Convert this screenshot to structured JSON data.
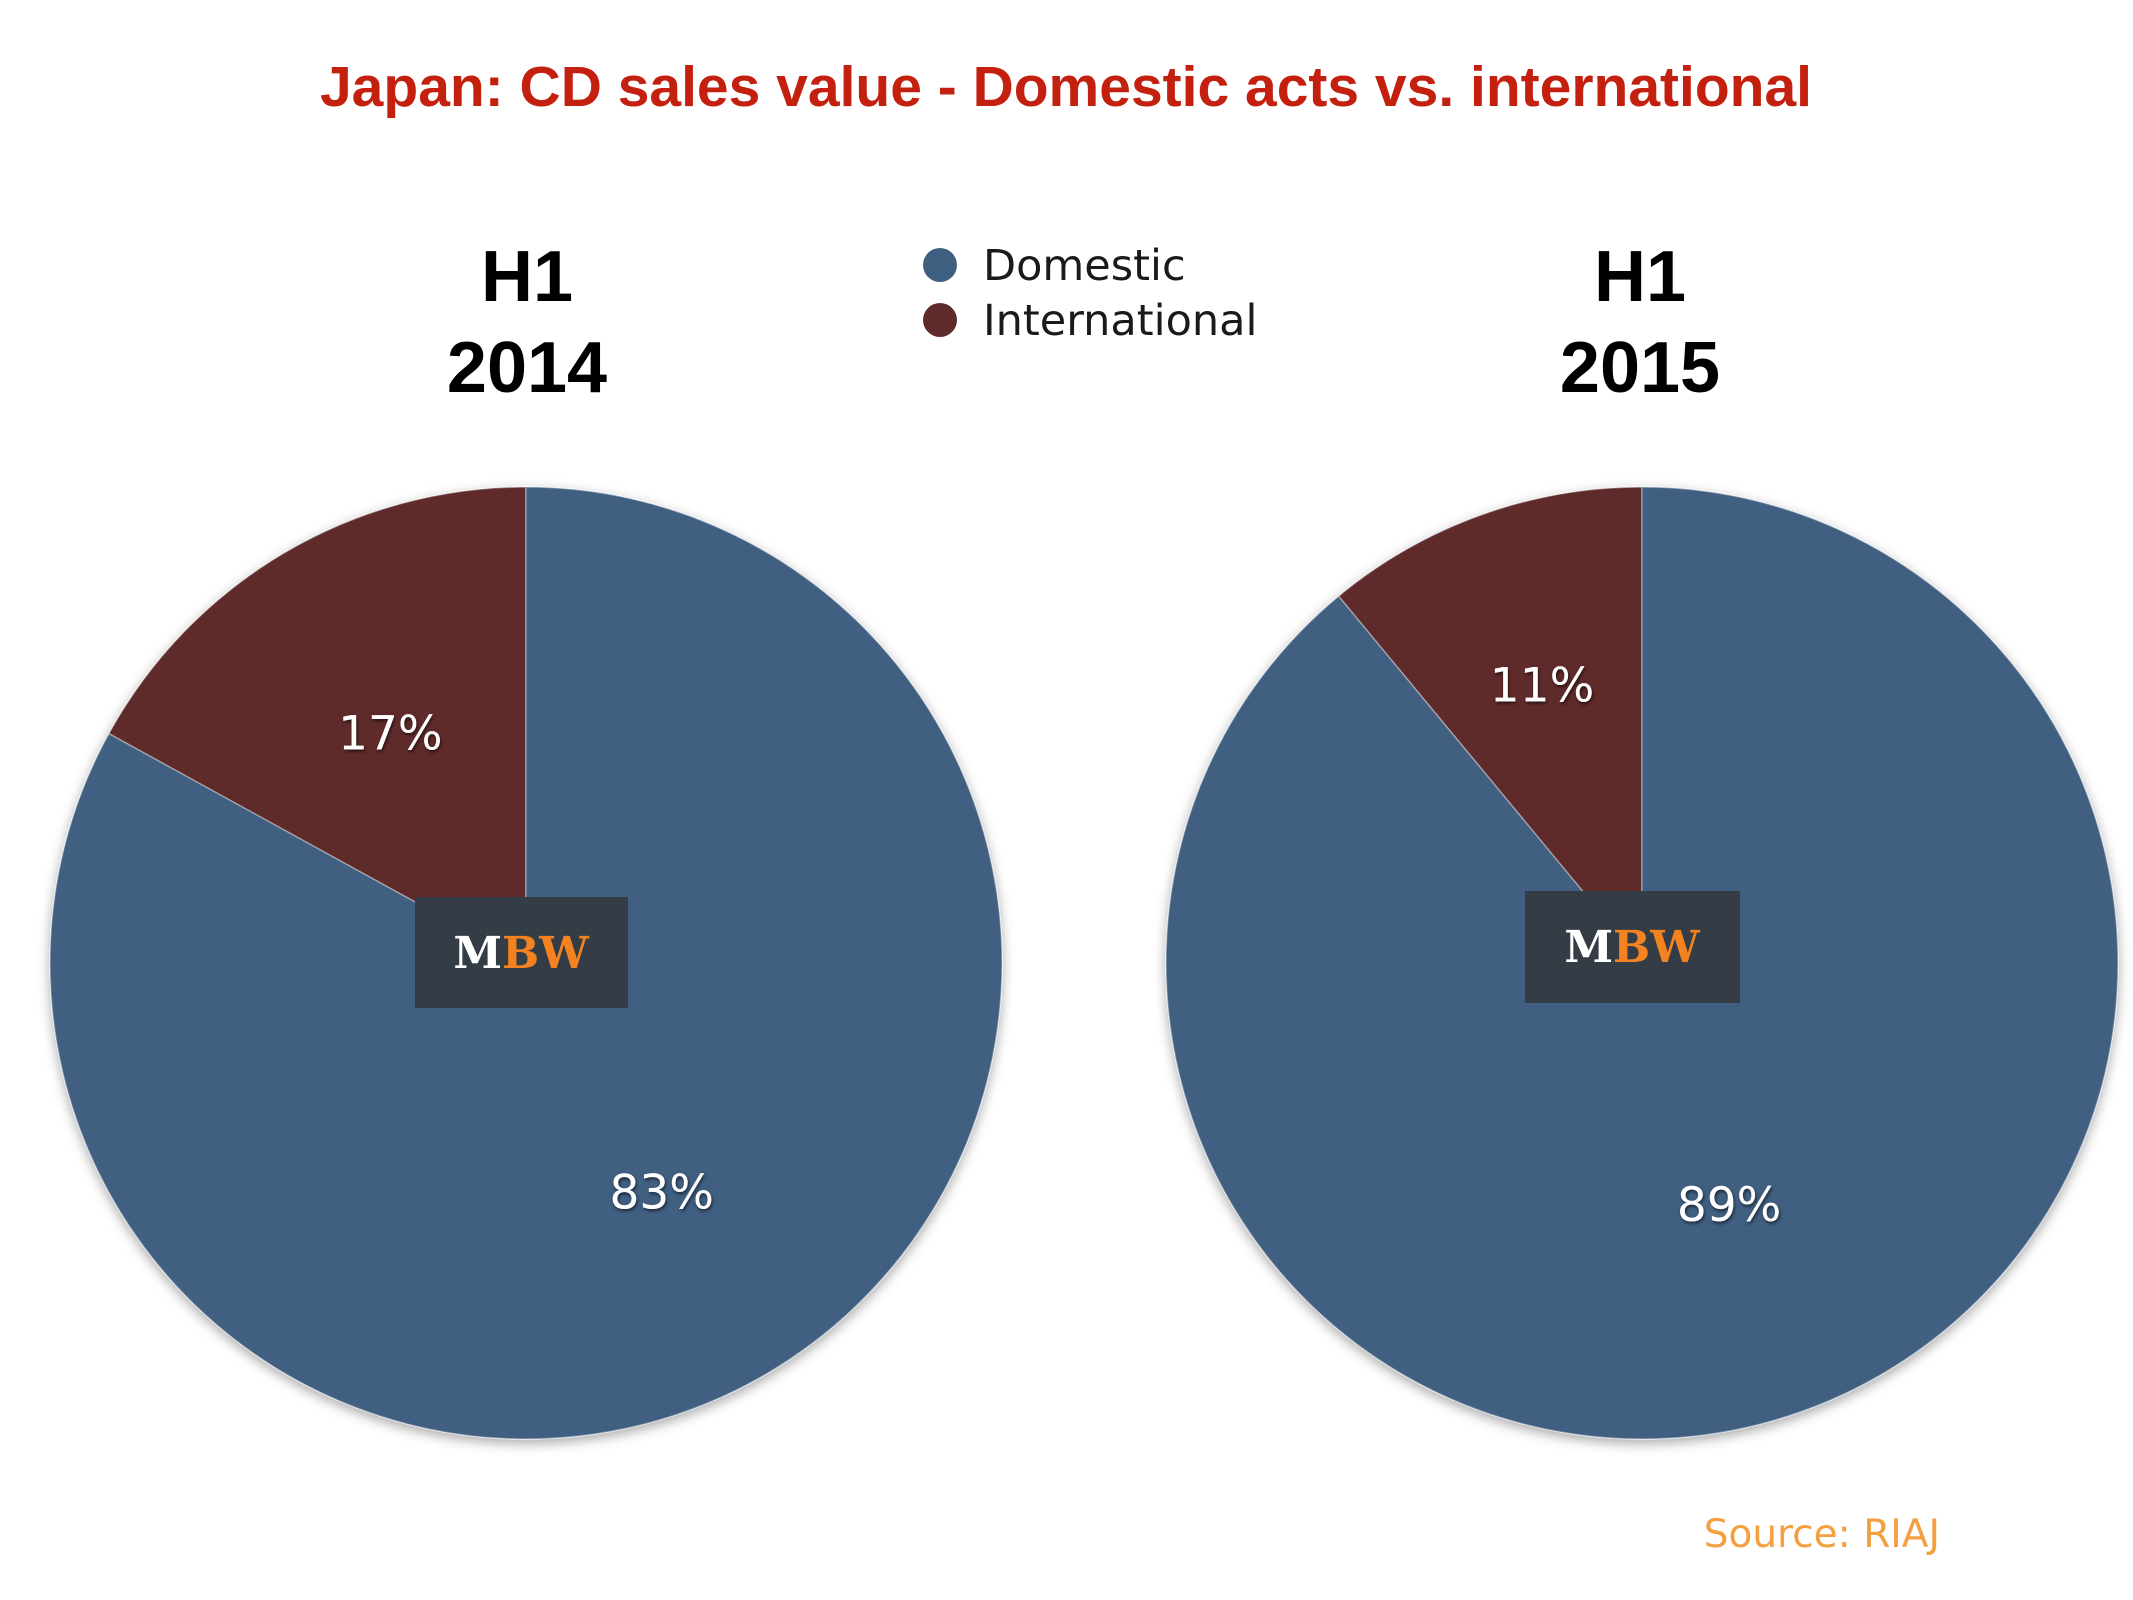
{
  "title": "Japan: CD sales value - Domestic acts vs. international",
  "source": "Source: RIAJ",
  "legend": {
    "position": "top-center",
    "items": [
      {
        "label": "Domestic",
        "color": "#3f5f81"
      },
      {
        "label": "International",
        "color": "#5e2a2a"
      }
    ]
  },
  "logo": {
    "part1": "M",
    "part2": "BW",
    "colors": {
      "box": "#343c45",
      "part1": "#ffffff",
      "part2": "#f58220"
    }
  },
  "colors": {
    "title": "#c4200f",
    "source": "#f5a040"
  },
  "chart_data": [
    {
      "type": "pie",
      "title_line1": "H1",
      "title_line2": "2014",
      "slices": [
        {
          "label": "International",
          "value": 17,
          "display": "17%",
          "color": "#5e2a2a"
        },
        {
          "label": "Domestic",
          "value": 83,
          "display": "83%",
          "color": "#3f5f81"
        }
      ]
    },
    {
      "type": "pie",
      "title_line1": "H1",
      "title_line2": "2015",
      "slices": [
        {
          "label": "International",
          "value": 11,
          "display": "11%",
          "color": "#5e2a2a"
        },
        {
          "label": "Domestic",
          "value": 89,
          "display": "89%",
          "color": "#3f5f81"
        }
      ]
    }
  ]
}
